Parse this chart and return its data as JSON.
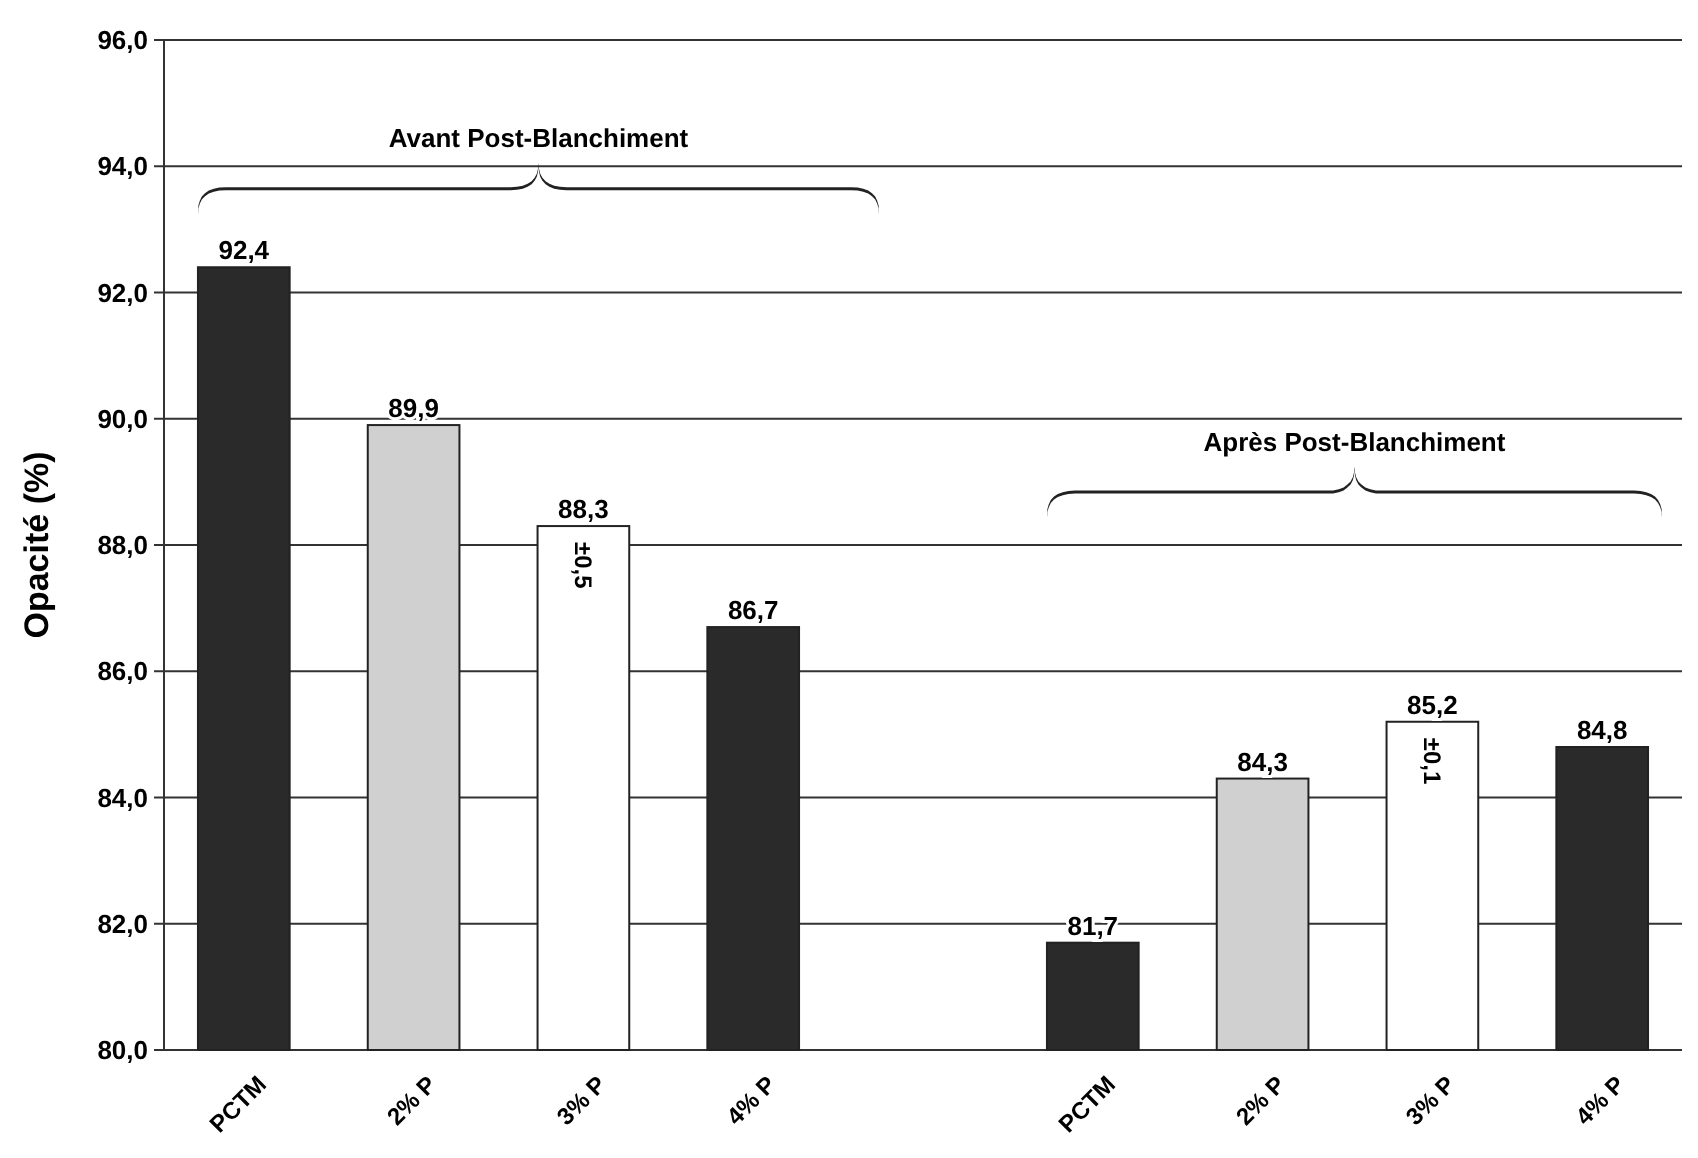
{
  "chart_data": {
    "type": "bar",
    "ylabel": "Opacité (%)",
    "categories": [
      "PCTM",
      "2% P",
      "3% P",
      "4% P",
      null,
      "PCTM",
      "2% P",
      "3% P",
      "4% P"
    ],
    "values": [
      92.4,
      89.9,
      88.3,
      86.7,
      null,
      81.7,
      84.3,
      85.2,
      84.8
    ],
    "colors": [
      "#2a2a2a",
      "#d0d0d0",
      "#ffffff",
      "#2a2a2a",
      null,
      "#2a2a2a",
      "#d0d0d0",
      "#ffffff",
      "#2a2a2a"
    ],
    "value_labels": [
      "92,4",
      "89,9",
      "88,3",
      "86,7",
      null,
      "81,7",
      "84,3",
      "85,2",
      "84,8"
    ],
    "ylim": [
      80,
      96
    ],
    "yticks": [
      {
        "value": 80,
        "label": "80,0"
      },
      {
        "value": 82,
        "label": "82,0"
      },
      {
        "value": 84,
        "label": "84,0"
      },
      {
        "value": 86,
        "label": "86,0"
      },
      {
        "value": 88,
        "label": "88,0"
      },
      {
        "value": 90,
        "label": "90,0"
      },
      {
        "value": 92,
        "label": "92,0"
      },
      {
        "value": 94,
        "label": "94,0"
      },
      {
        "value": 96,
        "label": "96,0"
      }
    ],
    "grid": "y",
    "annotations": [
      "Avant Post-Blanchiment",
      "Après Post-Blanchiment",
      "±0,5",
      "±0,1"
    ]
  }
}
